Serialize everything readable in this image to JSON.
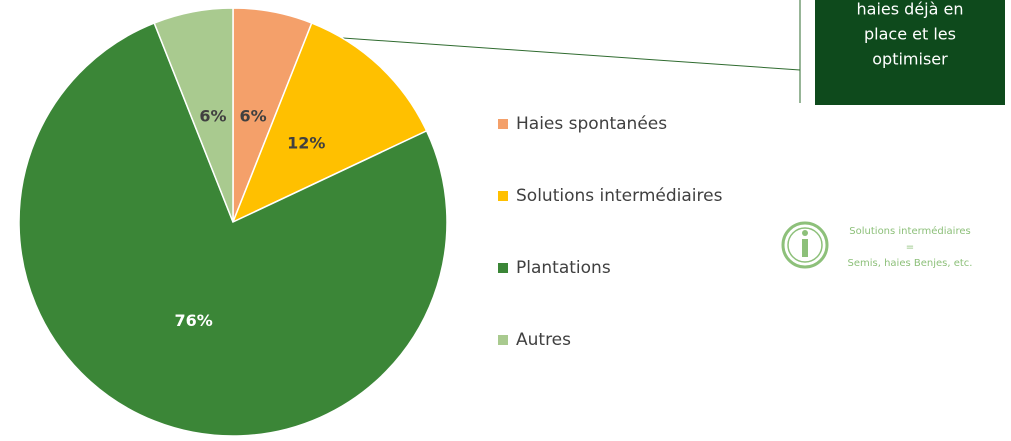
{
  "chart_data": {
    "type": "pie",
    "categories": [
      "Haies spontanées",
      "Solutions intermédiaires",
      "Plantations",
      "Autres"
    ],
    "values": [
      6,
      12,
      76,
      6
    ],
    "value_labels": [
      "6%",
      "12%",
      "76%",
      "6%"
    ],
    "colors": [
      "#F4A06A",
      "#FFC000",
      "#3B8637",
      "#A9CA8F"
    ],
    "legend": "right",
    "annotation": [
      "haies déjà en",
      "place et les",
      "optimiser"
    ],
    "note": [
      "Solutions intermédiaires",
      "=",
      "Semis, haies Benjes, etc."
    ]
  }
}
